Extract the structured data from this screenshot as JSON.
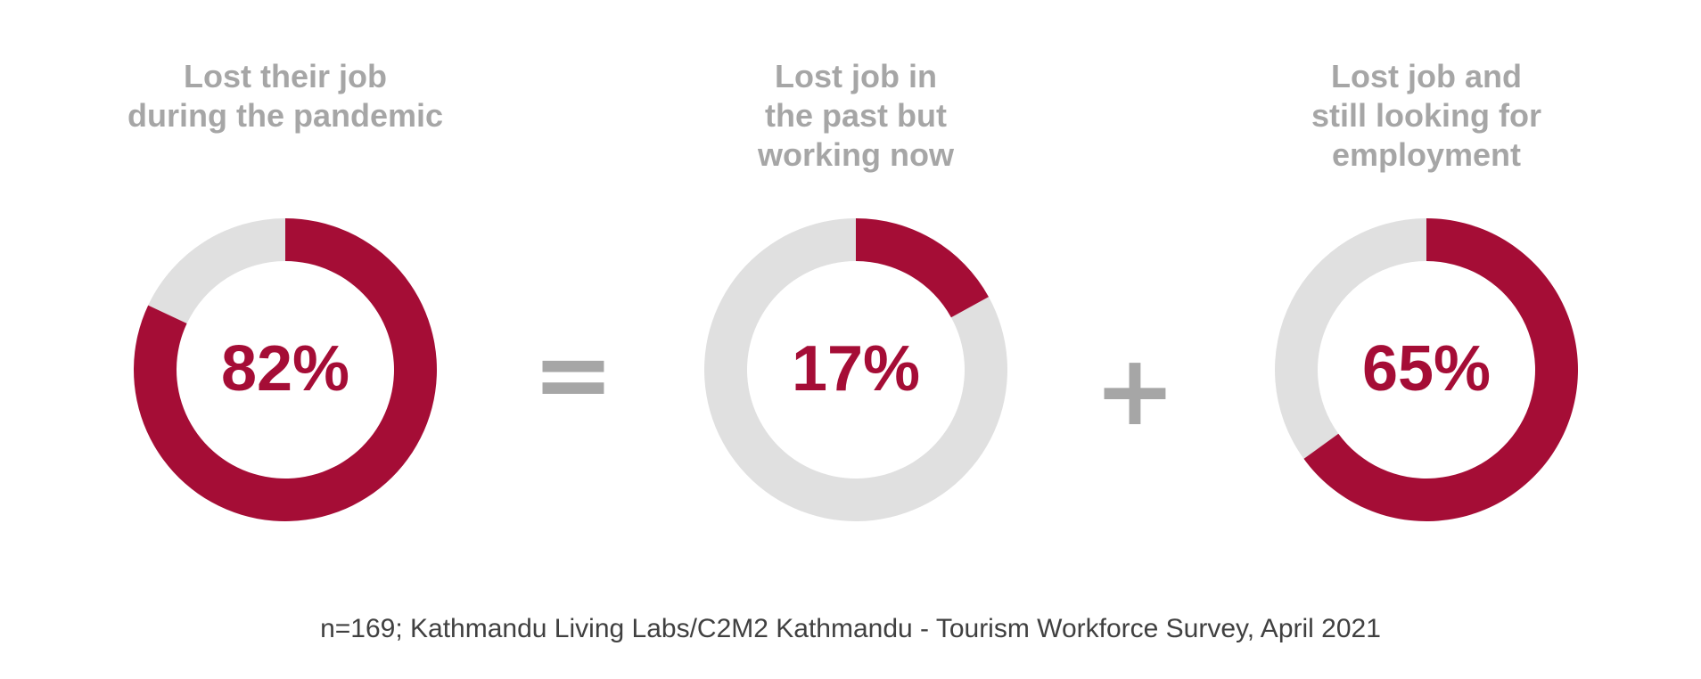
{
  "chart_data": [
    {
      "type": "pie",
      "title": "Lost their job\nduring the pandemic",
      "value": 82,
      "label": "82%",
      "colors": {
        "value": "#a50d36",
        "remainder": "#e0e0e0"
      }
    },
    {
      "type": "pie",
      "title": "Lost job in\nthe past but\nworking now",
      "value": 17,
      "label": "17%",
      "colors": {
        "value": "#a50d36",
        "remainder": "#e0e0e0"
      }
    },
    {
      "type": "pie",
      "title": "Lost job and\nstill looking for\nemployment",
      "value": 65,
      "label": "65%",
      "colors": {
        "value": "#a50d36",
        "remainder": "#e0e0e0"
      }
    }
  ],
  "operators": {
    "equals": "=",
    "plus": "+"
  },
  "source": "n=169; Kathmandu Living Labs/C2M2 Kathmandu - Tourism Workforce Survey, April 2021",
  "colors": {
    "accent": "#a50d36",
    "track": "#e0e0e0",
    "title_text": "#a6a6a6",
    "source_text": "#404040"
  }
}
